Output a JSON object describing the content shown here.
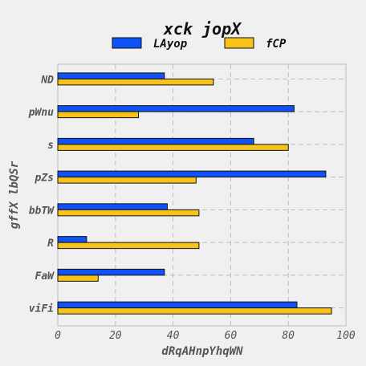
{
  "chart_data": {
    "type": "bar",
    "orientation": "horizontal",
    "title": "xck jopX",
    "xlabel": "dRqAHnpYhqWN",
    "ylabel": "gffX lbQSr",
    "xlim": [
      0,
      100
    ],
    "xticks": [
      0,
      20,
      40,
      60,
      80,
      100
    ],
    "grid": true,
    "legend_position": "top",
    "categories": [
      "ND",
      "pWnu",
      "s",
      "pZs",
      "bbTW",
      "R",
      "FaW",
      "viFi"
    ],
    "series": [
      {
        "name": "LAyop",
        "color": "#0f52f5",
        "values": [
          37,
          82,
          68,
          93,
          38,
          10,
          37,
          83
        ]
      },
      {
        "name": "fCP",
        "color": "#f8c21a",
        "values": [
          54,
          28,
          80,
          48,
          49,
          49,
          14,
          95
        ]
      }
    ]
  }
}
